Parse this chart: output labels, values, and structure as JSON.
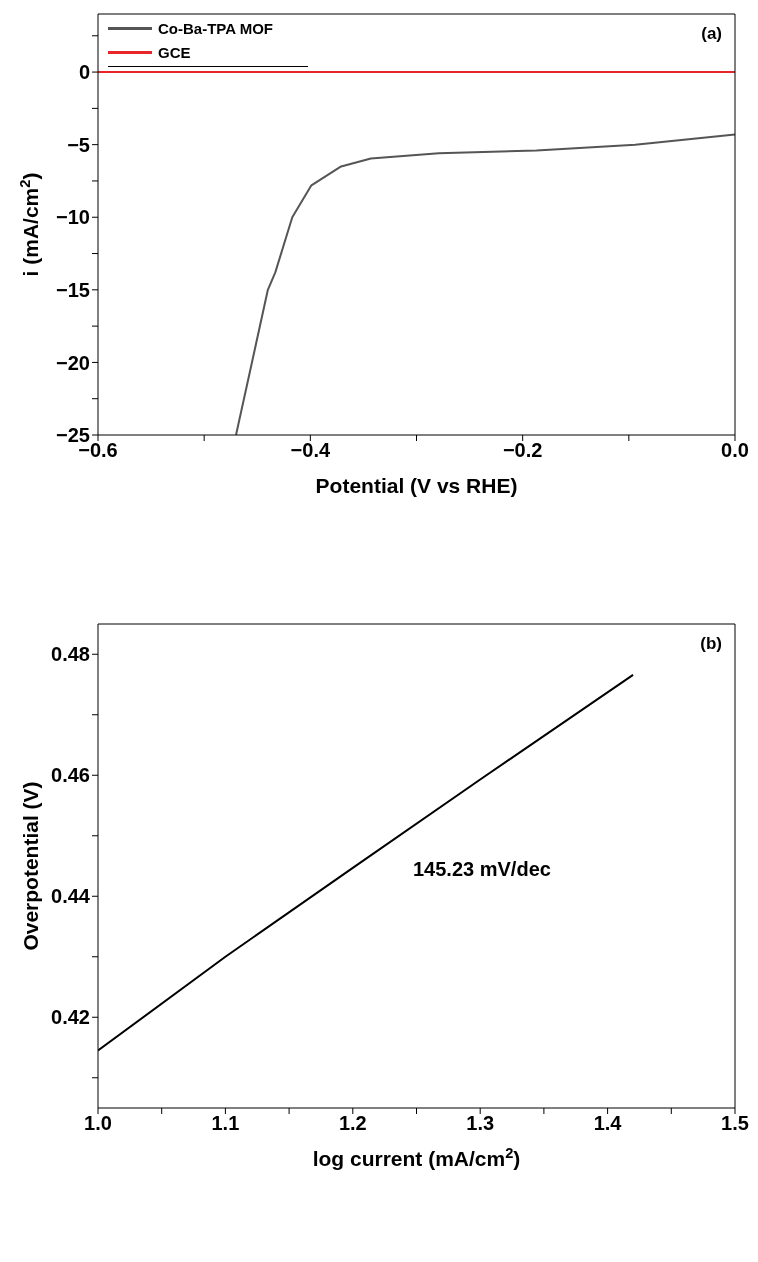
{
  "chart_data": [
    {
      "type": "line",
      "title": "(a)",
      "xlabel": "Potential (V vs RHE)",
      "ylabel": "i (mA/cm$^{2}$)",
      "xlim": [
        -0.6,
        0
      ],
      "ylim": [
        -25,
        4
      ],
      "xticks": [
        -0.6,
        {
          "value": -0.5,
          "label": null
        },
        -0.4,
        {
          "value": -0.3,
          "label": null
        },
        -0.2,
        {
          "value": -0.1,
          "label": null
        },
        {
          "value": 0,
          "label": "0.0"
        }
      ],
      "yticks": [
        -25,
        {
          "value": -22.5,
          "label": null
        },
        -20,
        {
          "value": -17.5,
          "label": null
        },
        -15,
        {
          "value": -12.5,
          "label": null
        },
        -10,
        {
          "value": -7.5,
          "label": null
        },
        -5,
        {
          "value": -2.5,
          "label": null
        },
        0,
        {
          "value": 2.5,
          "label": null
        }
      ],
      "legend": "top left",
      "grid": false,
      "marker": "none",
      "line_style": "solid",
      "series": [
        {
          "name": "Co-Ba-TPA MOF",
          "color": "#555555",
          "x": [
            -0.47,
            -0.455,
            -0.44,
            -0.433,
            -0.417,
            -0.399,
            -0.371,
            -0.343,
            -0.279,
            -0.187,
            -0.094,
            0
          ],
          "values": [
            -25,
            -20,
            -15,
            -13.8,
            -10,
            -7.8,
            -6.5,
            -5.95,
            -5.6,
            -5.4,
            -5,
            -4.3
          ]
        },
        {
          "name": "GCE",
          "color": "#e8262a",
          "x": [
            -0.6,
            0
          ],
          "values": [
            0,
            0
          ]
        }
      ]
    },
    {
      "type": "line",
      "title": "(b)",
      "xlabel": "log current (mA/cm$^{2}$)",
      "ylabel": "Overpotential (V)",
      "xlim": [
        1,
        1.5
      ],
      "ylim": [
        0.405,
        0.485
      ],
      "xticks": [
        {
          "value": 1,
          "label": "1.0"
        },
        {
          "value": 1.05,
          "label": null
        },
        1.1,
        {
          "value": 1.15,
          "label": null
        },
        1.2,
        {
          "value": 1.25,
          "label": null
        },
        1.3,
        {
          "value": 1.35,
          "label": null
        },
        1.4,
        {
          "value": 1.45,
          "label": null
        },
        1.5
      ],
      "yticks": [
        {
          "value": 0.41,
          "label": null
        },
        0.42,
        {
          "value": 0.43,
          "label": null
        },
        0.44,
        {
          "value": 0.45,
          "label": null
        },
        0.46,
        {
          "value": 0.47,
          "label": null
        },
        0.48
      ],
      "grid": false,
      "marker": "none",
      "line_style": "solid",
      "annotations": [
        "145.23 mV/dec"
      ],
      "series": [
        {
          "color": "#000000",
          "x": [
            1,
            1.1,
            1.2,
            1.3,
            1.42
          ],
          "values": [
            0.4145,
            0.43,
            0.4447,
            0.4593,
            0.4766
          ]
        }
      ]
    }
  ]
}
